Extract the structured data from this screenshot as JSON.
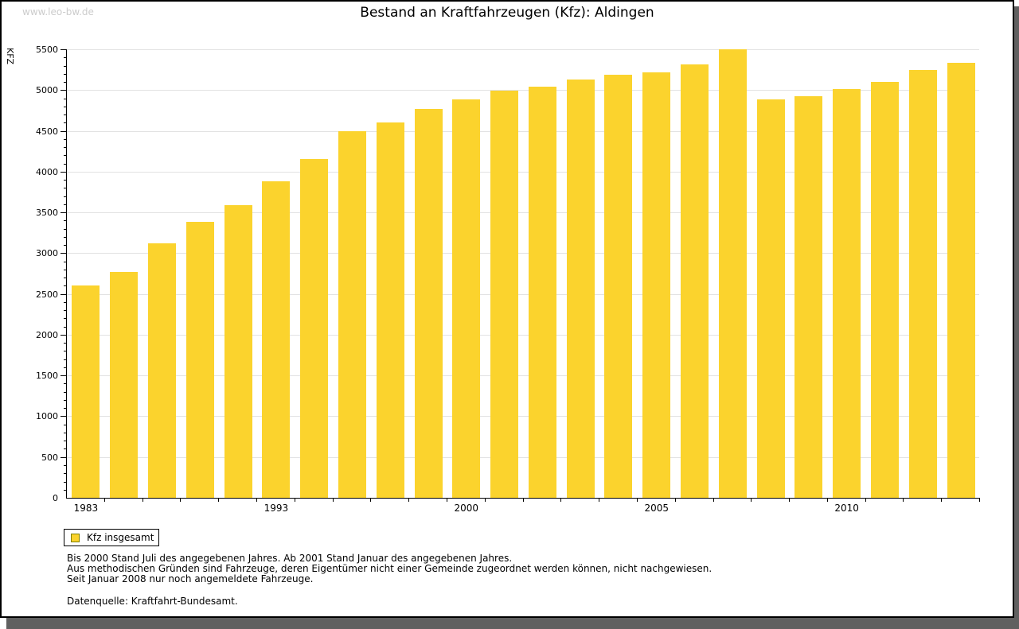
{
  "watermark": "www.leo-bw.de",
  "title": "Bestand an Kraftfahrzeugen (Kfz): Aldingen",
  "legend": {
    "label": "Kfz insgesamt"
  },
  "footnotes": [
    "Bis 2000 Stand Juli des angegebenen Jahres. Ab 2001 Stand Januar des angegebenen Jahres.",
    "Aus methodischen Gründen sind Fahrzeuge, deren Eigentümer nicht einer Gemeinde zugeordnet werden können, nicht nachgewiesen.",
    "Seit Januar 2008 nur noch angemeldete Fahrzeuge."
  ],
  "source": "Datenquelle: Kraftfahrt-Bundesamt.",
  "colors": {
    "bar": "#fbd32d",
    "swatch_border": "#808000",
    "grid": "#e2e2e2",
    "axis": "#000000",
    "watermark_text": "#cccccc",
    "frame_shadow": "#606060"
  },
  "chart_data": {
    "type": "bar",
    "title": "Bestand an Kraftfahrzeugen (Kfz): Aldingen",
    "xlabel": "",
    "ylabel": "KFZ",
    "ylim": [
      0,
      5500
    ],
    "y_major_step": 500,
    "y_minor_step": 100,
    "grid": "horizontal major gridlines on",
    "legend_position": "below plot, bottom-left",
    "legend_entries": [
      "Kfz insgesamt"
    ],
    "values": [
      2600,
      2770,
      3120,
      3380,
      3590,
      3880,
      4150,
      4500,
      4600,
      4770,
      4890,
      4990,
      5040,
      5130,
      5190,
      5220,
      5320,
      5500,
      4890,
      4930,
      5010,
      5100,
      5250,
      5330
    ],
    "x_tick_labels": [
      {
        "label": "1983",
        "bar_index": 0
      },
      {
        "label": "1993",
        "bar_index": 5
      },
      {
        "label": "2000",
        "bar_index": 10
      },
      {
        "label": "2005",
        "bar_index": 15
      },
      {
        "label": "2010",
        "bar_index": 20
      }
    ]
  }
}
